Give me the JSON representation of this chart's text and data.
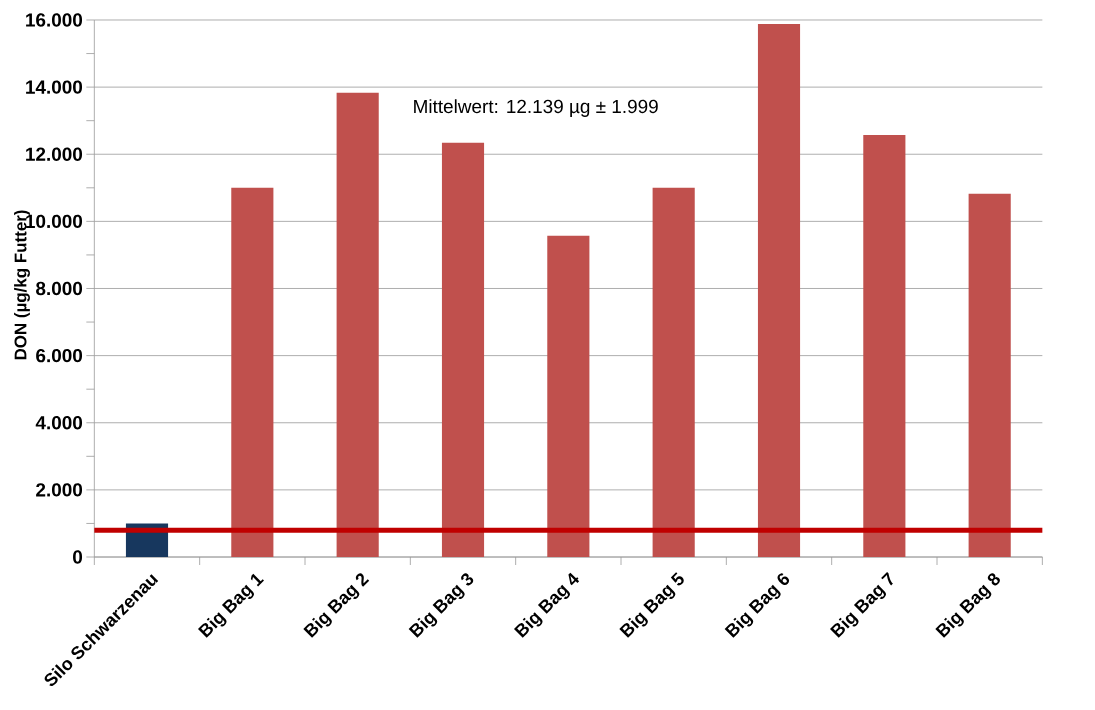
{
  "chart_data": {
    "type": "bar",
    "ylabel": "DON (µg/kg Futter)",
    "categories": [
      "Silo Schwarzenau",
      "Big Bag 1",
      "Big Bag 2",
      "Big Bag 3",
      "Big Bag 4",
      "Big Bag 5",
      "Big Bag 6",
      "Big Bag 7",
      "Big Bag 8"
    ],
    "values": [
      1000,
      11000,
      13830,
      12340,
      9570,
      11000,
      15880,
      12570,
      10820
    ],
    "colors": [
      "#17375e",
      "#c0504d",
      "#c0504d",
      "#c0504d",
      "#c0504d",
      "#c0504d",
      "#c0504d",
      "#c0504d",
      "#c0504d"
    ],
    "ylim": [
      0,
      16000
    ],
    "yticks": [
      {
        "value": 0,
        "label": "0"
      },
      {
        "value": 1000,
        "label": null
      },
      {
        "value": 2000,
        "label": "2.000"
      },
      {
        "value": 3000,
        "label": null
      },
      {
        "value": 4000,
        "label": "4.000"
      },
      {
        "value": 5000,
        "label": null
      },
      {
        "value": 6000,
        "label": "6.000"
      },
      {
        "value": 7000,
        "label": null
      },
      {
        "value": 8000,
        "label": "8.000"
      },
      {
        "value": 9000,
        "label": null
      },
      {
        "value": 10000,
        "label": "10.000"
      },
      {
        "value": 11000,
        "label": null
      },
      {
        "value": 12000,
        "label": "12.000"
      },
      {
        "value": 13000,
        "label": null
      },
      {
        "value": 14000,
        "label": "14.000"
      },
      {
        "value": 15000,
        "label": null
      },
      {
        "value": 16000,
        "label": "16.000"
      }
    ],
    "ref_lines": [
      {
        "axis": "y",
        "value": 800,
        "color": "#c00000"
      }
    ],
    "annotations": [
      "Mittelwert:  12.139 µg ± 1.999"
    ],
    "grid": "y"
  }
}
